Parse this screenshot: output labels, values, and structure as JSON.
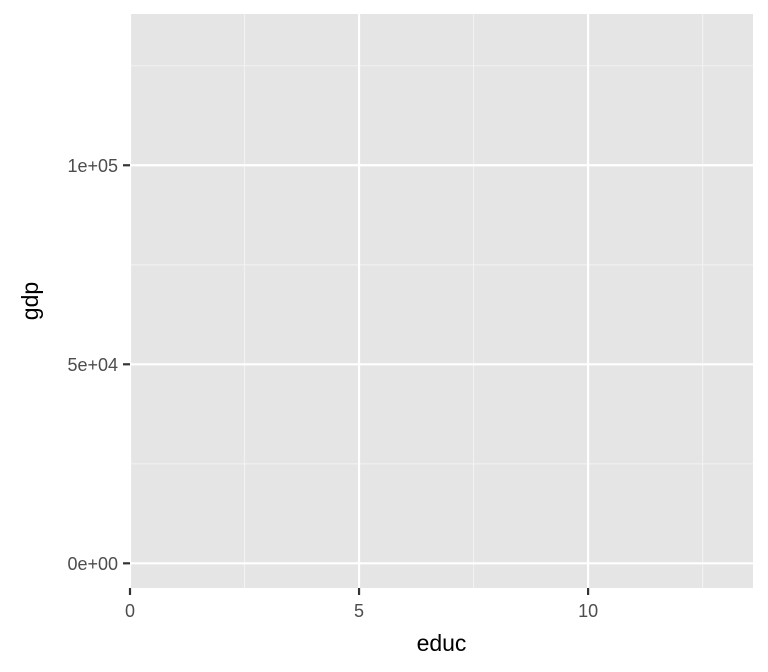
{
  "chart_data": {
    "type": "scatter",
    "title": "",
    "xlabel": "educ",
    "ylabel": "gdp",
    "xlim": [
      0,
      13.6
    ],
    "ylim": [
      -6200,
      138000
    ],
    "x_ticks": [
      {
        "value": 0,
        "label": "0"
      },
      {
        "value": 5,
        "label": "5"
      },
      {
        "value": 10,
        "label": "10"
      }
    ],
    "x_minor": [
      2.5,
      7.5,
      12.5
    ],
    "y_ticks": [
      {
        "value": 0,
        "label": "0e+00"
      },
      {
        "value": 50000,
        "label": "5e+04"
      },
      {
        "value": 100000,
        "label": "1e+05"
      }
    ],
    "y_minor": [
      25000,
      75000,
      125000
    ],
    "grid": true,
    "series": [
      {
        "x": [],
        "y": []
      }
    ],
    "colors": {
      "panel_background": "#e5e5e5",
      "grid_major": "#ffffff",
      "grid_minor": "#f2f2f2",
      "tick_mark": "#333333",
      "tick_label": "#4d4d4d",
      "axis_title": "#000000"
    }
  }
}
